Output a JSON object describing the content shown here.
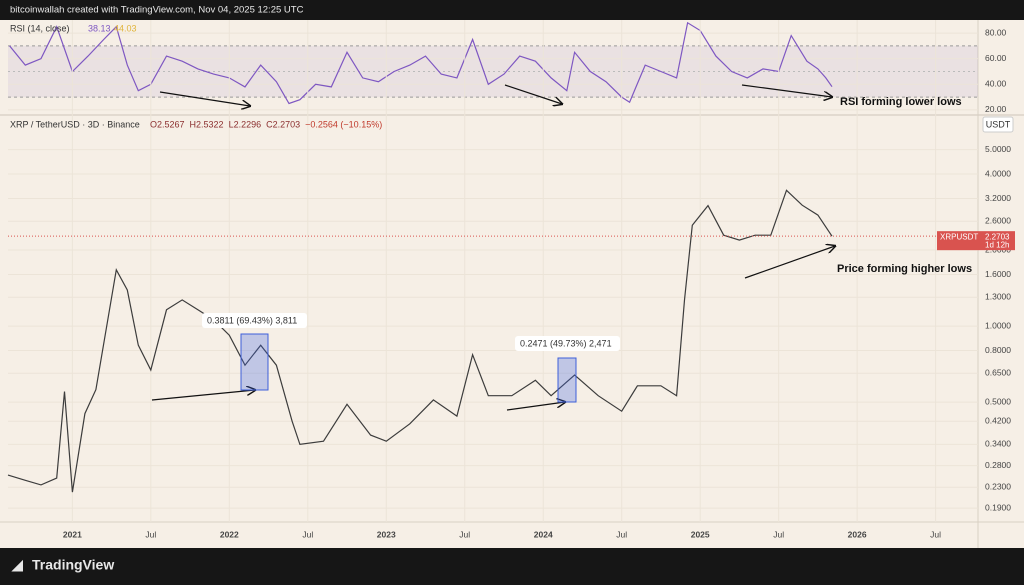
{
  "header": {
    "credit": "bitcoinwallah created with TradingView.com, Nov 04, 2025 12:25 UTC"
  },
  "chart_data": [
    {
      "type": "line",
      "title": "RSI (14, close)",
      "ma_value": 44.03,
      "annotation": "RSI forming lower lows",
      "xlim": [
        2020.59,
        2026.77
      ],
      "ylim": [
        17.6,
        90.2
      ],
      "yticks": [
        {
          "value": 20,
          "label": "20.00"
        },
        {
          "value": 40,
          "label": "40.00"
        },
        {
          "value": 60,
          "label": "60.00"
        },
        {
          "value": 80,
          "label": "80.00"
        }
      ],
      "band": [
        30,
        70
      ],
      "midline": 50,
      "series": [
        {
          "color": "#7e57c2",
          "x": [
            2020.6,
            2020.7,
            2020.8,
            2020.9,
            2021.0,
            2021.1,
            2021.2,
            2021.28,
            2021.35,
            2021.42,
            2021.5,
            2021.6,
            2021.7,
            2021.8,
            2021.9,
            2022.0,
            2022.1,
            2022.2,
            2022.3,
            2022.38,
            2022.45,
            2022.55,
            2022.65,
            2022.75,
            2022.85,
            2022.95,
            2023.05,
            2023.15,
            2023.25,
            2023.35,
            2023.45,
            2023.55,
            2023.65,
            2023.75,
            2023.85,
            2023.95,
            2024.05,
            2024.15,
            2024.2,
            2024.3,
            2024.4,
            2024.5,
            2024.55,
            2024.65,
            2024.75,
            2024.85,
            2024.92,
            2025.0,
            2025.1,
            2025.2,
            2025.3,
            2025.4,
            2025.5,
            2025.58,
            2025.68,
            2025.75,
            2025.8,
            2025.84
          ],
          "values": [
            70,
            55,
            60,
            85,
            50,
            62,
            75,
            85,
            55,
            35,
            40,
            62,
            58,
            52,
            48,
            45,
            38,
            55,
            42,
            25,
            28,
            40,
            38,
            65,
            45,
            42,
            50,
            55,
            62,
            48,
            45,
            75,
            40,
            48,
            62,
            58,
            45,
            35,
            65,
            50,
            42,
            30,
            26,
            55,
            50,
            45,
            88,
            82,
            62,
            50,
            45,
            52,
            50,
            78,
            58,
            52,
            45,
            38.13
          ]
        }
      ]
    },
    {
      "type": "line",
      "log": true,
      "title": "XRP / TetherUSD · 3D · Binance",
      "ohlc": [
        "O2.5267",
        "H2.5322",
        "L2.2296",
        "C2.2703",
        "−0.2564 (−10.15%)"
      ],
      "y_unit": "USDT",
      "symbol": "XRPUSDT",
      "countdown": "1d 12h",
      "annotation": "Price forming higher lows",
      "measures": [
        "0.3811 (69.43%) 3,811",
        "0.2471 (49.73%) 2,471"
      ],
      "xlim": [
        2020.59,
        2026.77
      ],
      "ylim": [
        0.1675,
        6.73
      ],
      "xticks": [
        2021,
        {
          "value": 2021.5,
          "label": "Jul"
        },
        2022,
        {
          "value": 2022.5,
          "label": "Jul"
        },
        2023,
        {
          "value": 2023.5,
          "label": "Jul"
        },
        2024,
        {
          "value": 2024.5,
          "label": "Jul"
        },
        2025,
        {
          "value": 2025.5,
          "label": "Jul"
        },
        2026,
        {
          "value": 2026.5,
          "label": "Jul"
        }
      ],
      "yticks": [
        {
          "value": 0.19,
          "label": "0.1900"
        },
        {
          "value": 0.23,
          "label": "0.2300"
        },
        {
          "value": 0.28,
          "label": "0.2800"
        },
        {
          "value": 0.34,
          "label": "0.3400"
        },
        {
          "value": 0.42,
          "label": "0.4200"
        },
        {
          "value": 0.5,
          "label": "0.5000"
        },
        {
          "value": 0.65,
          "label": "0.6500"
        },
        {
          "value": 0.8,
          "label": "0.8000"
        },
        {
          "value": 1,
          "label": "1.0000"
        },
        {
          "value": 1.3,
          "label": "1.3000"
        },
        {
          "value": 1.6,
          "label": "1.6000"
        },
        {
          "value": 2,
          "label": "2.0000"
        },
        {
          "value": 2.6,
          "label": "2.6000"
        },
        {
          "value": 3.2,
          "label": "3.2000"
        },
        {
          "value": 4,
          "label": "4.0000"
        },
        {
          "value": 5,
          "label": "5.0000"
        }
      ],
      "series": [
        {
          "color": "#3c3c3c",
          "x": [
            2020.59,
            2020.7,
            2020.8,
            2020.9,
            2020.95,
            2021.0,
            2021.08,
            2021.15,
            2021.28,
            2021.35,
            2021.42,
            2021.5,
            2021.6,
            2021.7,
            2021.8,
            2021.9,
            2022.0,
            2022.1,
            2022.2,
            2022.3,
            2022.4,
            2022.45,
            2022.6,
            2022.75,
            2022.9,
            2023.0,
            2023.15,
            2023.3,
            2023.45,
            2023.55,
            2023.65,
            2023.8,
            2023.95,
            2024.05,
            2024.2,
            2024.35,
            2024.5,
            2024.6,
            2024.75,
            2024.85,
            2024.9,
            2024.95,
            2025.05,
            2025.15,
            2025.25,
            2025.35,
            2025.45,
            2025.55,
            2025.65,
            2025.75,
            2025.84
          ],
          "values": [
            0.257,
            0.245,
            0.235,
            0.25,
            0.55,
            0.22,
            0.45,
            0.56,
            1.67,
            1.39,
            0.84,
            0.67,
            1.16,
            1.27,
            1.16,
            1.06,
            0.92,
            0.7,
            0.84,
            0.7,
            0.42,
            0.34,
            0.35,
            0.49,
            0.37,
            0.35,
            0.41,
            0.51,
            0.44,
            0.77,
            0.53,
            0.53,
            0.61,
            0.53,
            0.64,
            0.53,
            0.46,
            0.58,
            0.58,
            0.53,
            1.27,
            2.51,
            3.0,
            2.29,
            2.19,
            2.29,
            2.29,
            3.45,
            3.01,
            2.75,
            2.2703
          ]
        }
      ]
    }
  ],
  "footer": {
    "brand": "TradingView"
  }
}
